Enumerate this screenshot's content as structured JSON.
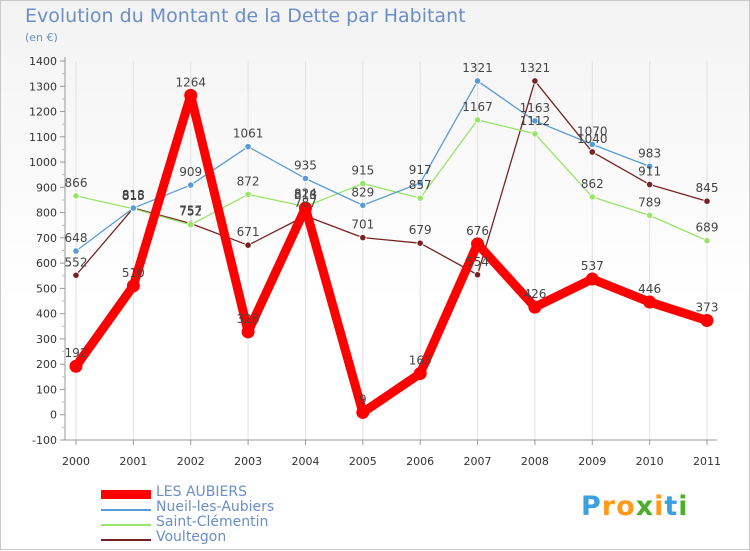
{
  "chart_data": {
    "type": "line",
    "title": "Evolution du Montant de la Dette par Habitant",
    "unit_label": "(en €)",
    "xlabel": "",
    "ylabel": "",
    "x": [
      "2000",
      "2001",
      "2002",
      "2003",
      "2004",
      "2005",
      "2006",
      "2007",
      "2008",
      "2009",
      "2010",
      "2011"
    ],
    "ylim": [
      -100,
      1400
    ],
    "yticks": [
      -100,
      0,
      100,
      200,
      300,
      400,
      500,
      600,
      700,
      800,
      900,
      1000,
      1100,
      1200,
      1300,
      1400
    ],
    "grid": "vertical",
    "legend_position": "bottom-left",
    "series": [
      {
        "name": "LES AUBIERS",
        "color": "#ff0000",
        "values": [
          192,
          510,
          1264,
          328,
          818,
          9,
          163,
          676,
          426,
          537,
          446,
          373
        ]
      },
      {
        "name": "Nueil-les-Aubiers",
        "color": "#5b9bd5",
        "values": [
          648,
          818,
          909,
          1061,
          935,
          829,
          917,
          1321,
          1163,
          1070,
          983,
          null
        ]
      },
      {
        "name": "Saint-Clémentin",
        "color": "#99e46a",
        "values": [
          866,
          815,
          752,
          872,
          824,
          915,
          857,
          1167,
          1112,
          862,
          789,
          689
        ]
      },
      {
        "name": "Voultegon",
        "color": "#772222",
        "values": [
          552,
          818,
          757,
          671,
          787,
          701,
          679,
          554,
          1321,
          1040,
          911,
          845
        ]
      }
    ]
  },
  "brand": {
    "logo_text": "Proxiti",
    "letters": [
      {
        "ch": "P",
        "color": "#3aa0e0"
      },
      {
        "ch": "r",
        "color": "#ff9a1a"
      },
      {
        "ch": "o",
        "color": "#ff9a1a"
      },
      {
        "ch": "x",
        "color": "#4caf2a"
      },
      {
        "ch": "i",
        "color": "#ff9a1a"
      },
      {
        "ch": "t",
        "color": "#3aa0e0"
      },
      {
        "ch": "i",
        "color": "#4caf2a"
      }
    ]
  }
}
